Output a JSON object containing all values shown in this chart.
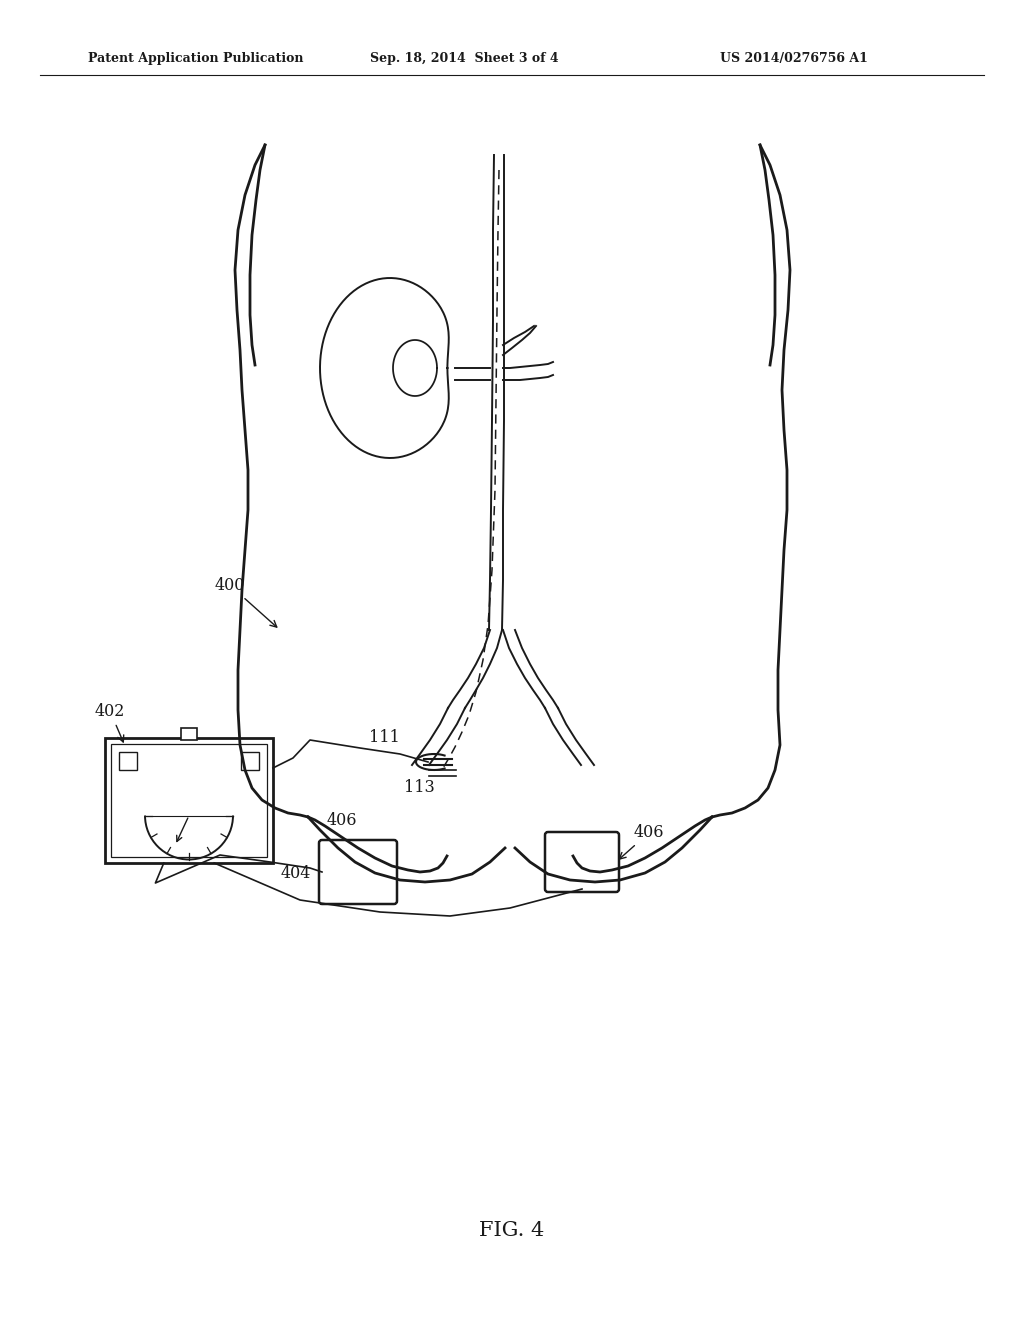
{
  "background_color": "#ffffff",
  "line_color": "#1a1a1a",
  "header_left": "Patent Application Publication",
  "header_center": "Sep. 18, 2014  Sheet 3 of 4",
  "header_right": "US 2014/0276756 A1",
  "figure_label": "FIG. 4"
}
